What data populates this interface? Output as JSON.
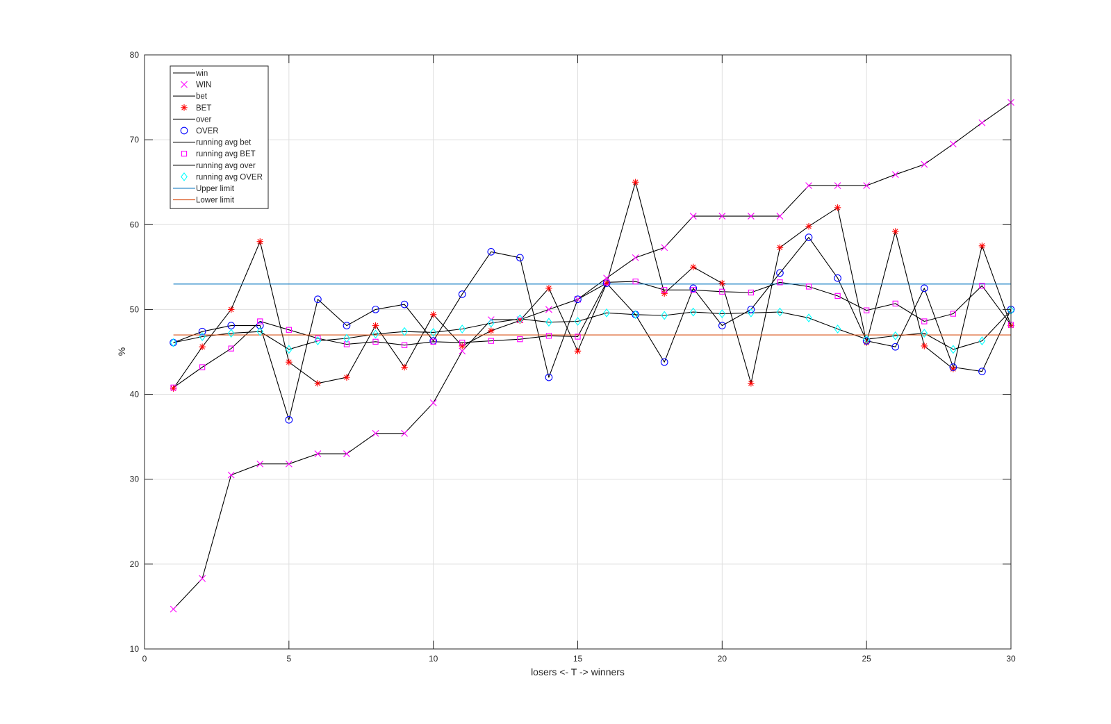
{
  "chart_data": {
    "type": "line",
    "xlabel": "losers <- T -> winners",
    "ylabel": "%",
    "xlim": [
      0,
      30
    ],
    "ylim": [
      10,
      80
    ],
    "xticks": [
      0,
      5,
      10,
      15,
      20,
      25,
      30
    ],
    "yticks": [
      10,
      20,
      30,
      40,
      50,
      60,
      70,
      80
    ],
    "grid": true,
    "legend_position": "top-left",
    "x": [
      1,
      2,
      3,
      4,
      5,
      6,
      7,
      8,
      9,
      10,
      11,
      12,
      13,
      14,
      15,
      16,
      17,
      18,
      19,
      20,
      21,
      22,
      23,
      24,
      25,
      26,
      27,
      28,
      29,
      30
    ],
    "series": [
      {
        "name": "win",
        "style": "line",
        "color": "#000000",
        "values": [
          14.7,
          18.3,
          30.5,
          31.8,
          31.8,
          33.0,
          33.0,
          35.4,
          35.4,
          39.0,
          45.1,
          48.8,
          48.8,
          50.0,
          51.2,
          53.7,
          56.1,
          57.3,
          61.0,
          61.0,
          61.0,
          61.0,
          64.6,
          64.6,
          64.6,
          65.9,
          67.1,
          69.5,
          72.0,
          74.4
        ]
      },
      {
        "name": "WIN",
        "style": "marker",
        "marker": "x",
        "color": "#ff00ff",
        "values": [
          14.7,
          18.3,
          30.5,
          31.8,
          31.8,
          33.0,
          33.0,
          35.4,
          35.4,
          39.0,
          45.1,
          48.8,
          48.8,
          50.0,
          51.2,
          53.7,
          56.1,
          57.3,
          61.0,
          61.0,
          61.0,
          61.0,
          64.6,
          64.6,
          64.6,
          65.9,
          67.1,
          69.5,
          72.0,
          74.4
        ]
      },
      {
        "name": "bet",
        "style": "line",
        "color": "#000000",
        "values": [
          40.7,
          45.6,
          50.0,
          58.0,
          43.8,
          41.3,
          42.0,
          48.1,
          43.2,
          49.4,
          45.7,
          47.5,
          48.7,
          52.5,
          45.1,
          53.1,
          65.0,
          51.9,
          55.0,
          53.1,
          41.3,
          57.3,
          59.8,
          62.0,
          46.1,
          59.2,
          45.7,
          43.0,
          57.5,
          48.1
        ]
      },
      {
        "name": "BET",
        "style": "marker",
        "marker": "asterisk",
        "color": "#ff0000",
        "values": [
          40.7,
          45.6,
          50.0,
          58.0,
          43.8,
          41.3,
          42.0,
          48.1,
          43.2,
          49.4,
          45.7,
          47.5,
          48.7,
          52.5,
          45.1,
          53.1,
          65.0,
          51.9,
          55.0,
          53.1,
          41.3,
          57.3,
          59.8,
          62.0,
          46.1,
          59.2,
          45.7,
          43.0,
          57.5,
          48.1
        ]
      },
      {
        "name": "over",
        "style": "line",
        "color": "#000000",
        "values": [
          46.1,
          47.4,
          48.1,
          48.1,
          37.0,
          51.2,
          48.1,
          50.0,
          50.6,
          46.3,
          51.8,
          56.8,
          56.1,
          42.0,
          51.2,
          53.1,
          49.4,
          43.8,
          52.5,
          48.1,
          50.0,
          54.3,
          58.5,
          53.7,
          46.3,
          45.6,
          52.5,
          43.2,
          42.7,
          50.0
        ]
      },
      {
        "name": "OVER",
        "style": "marker",
        "marker": "circle",
        "color": "#0000ff",
        "values": [
          46.1,
          47.4,
          48.1,
          48.1,
          37.0,
          51.2,
          48.1,
          50.0,
          50.6,
          46.3,
          51.8,
          56.8,
          56.1,
          42.0,
          51.2,
          53.1,
          49.4,
          43.8,
          52.5,
          48.1,
          50.0,
          54.3,
          58.5,
          53.7,
          46.3,
          45.6,
          52.5,
          43.2,
          42.7,
          50.0
        ]
      },
      {
        "name": "running avg bet",
        "style": "line",
        "color": "#000000",
        "values": [
          40.8,
          43.2,
          45.4,
          48.6,
          47.6,
          46.6,
          45.9,
          46.2,
          45.8,
          46.2,
          46.1,
          46.3,
          46.5,
          46.9,
          46.8,
          53.2,
          53.3,
          52.3,
          52.3,
          52.1,
          52.0,
          53.2,
          52.7,
          51.6,
          49.9,
          50.7,
          48.6,
          49.5,
          52.8,
          48.2
        ]
      },
      {
        "name": "running avg BET",
        "style": "marker",
        "marker": "square",
        "color": "#ff00ff",
        "values": [
          40.8,
          43.2,
          45.4,
          48.6,
          47.6,
          46.6,
          45.9,
          46.2,
          45.8,
          46.2,
          46.1,
          46.3,
          46.5,
          46.9,
          46.8,
          53.2,
          53.3,
          52.3,
          52.3,
          52.1,
          52.0,
          53.2,
          52.7,
          51.6,
          49.9,
          50.7,
          48.6,
          49.5,
          52.8,
          48.2
        ]
      },
      {
        "name": "running avg over",
        "style": "line",
        "color": "#000000",
        "values": [
          46.1,
          46.8,
          47.2,
          47.4,
          45.3,
          46.3,
          46.6,
          47.1,
          47.4,
          47.3,
          47.7,
          48.4,
          48.9,
          48.5,
          48.6,
          49.6,
          49.4,
          49.3,
          49.7,
          49.5,
          49.6,
          49.7,
          49.0,
          47.7,
          46.5,
          46.9,
          47.2,
          45.3,
          46.3,
          49.9
        ]
      },
      {
        "name": "running avg OVER",
        "style": "marker",
        "marker": "diamond",
        "color": "#00ffff",
        "values": [
          46.1,
          46.8,
          47.2,
          47.4,
          45.3,
          46.3,
          46.6,
          47.1,
          47.4,
          47.3,
          47.7,
          48.4,
          48.9,
          48.5,
          48.6,
          49.6,
          49.4,
          49.3,
          49.7,
          49.5,
          49.6,
          49.7,
          49.0,
          47.7,
          46.5,
          46.9,
          47.2,
          45.3,
          46.3,
          49.9
        ]
      },
      {
        "name": "Upper limit",
        "style": "line",
        "color": "#0072bd",
        "values": [
          53,
          53,
          53,
          53,
          53,
          53,
          53,
          53,
          53,
          53,
          53,
          53,
          53,
          53,
          53,
          53,
          53,
          53,
          53,
          53,
          53,
          53,
          53,
          53,
          53,
          53,
          53,
          53,
          53,
          53
        ]
      },
      {
        "name": "Lower limit",
        "style": "line",
        "color": "#d95319",
        "values": [
          47,
          47,
          47,
          47,
          47,
          47,
          47,
          47,
          47,
          47,
          47,
          47,
          47,
          47,
          47,
          47,
          47,
          47,
          47,
          47,
          47,
          47,
          47,
          47,
          47,
          47,
          47,
          47,
          47,
          47
        ]
      }
    ]
  }
}
